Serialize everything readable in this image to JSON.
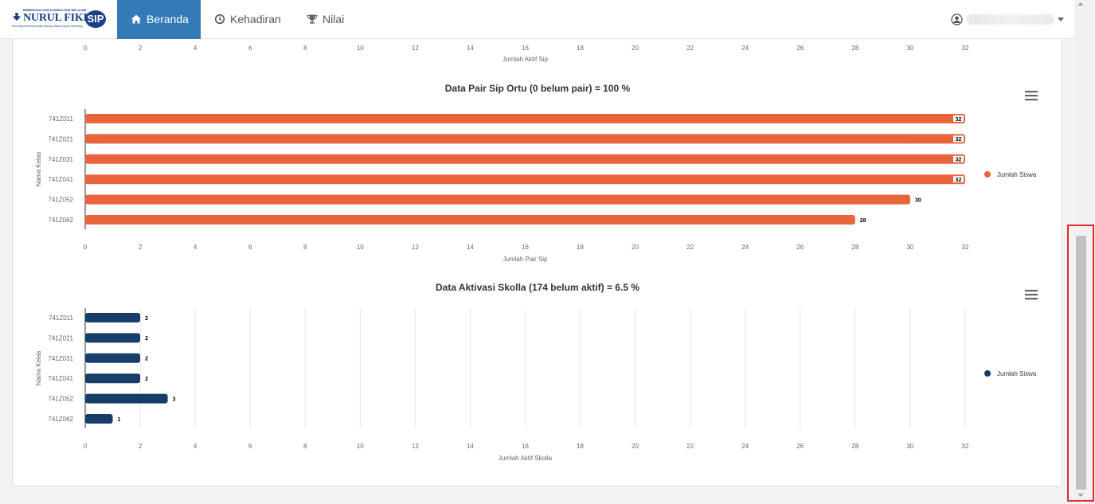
{
  "nav": {
    "logo": {
      "small_text": "BIMBINGAN DAN KONSULTASI BELAJAR",
      "brand": "NURUL FIKRI",
      "badge": "SIP",
      "tagline": "Kita Maju Bersama Wake Menuju Masa Depan Gemilang"
    },
    "items": [
      {
        "label": "Beranda",
        "icon": "home-icon",
        "active": true
      },
      {
        "label": "Kehadiran",
        "icon": "clock-icon",
        "active": false
      },
      {
        "label": "Nilai",
        "icon": "trophy-icon",
        "active": false
      }
    ],
    "user_icon": "user-circle-icon"
  },
  "colors": {
    "orange": "#e8643a",
    "navy": "#163e68",
    "active_nav": "#347ab7"
  },
  "chart_data": [
    {
      "type": "bar",
      "title": "",
      "xlabel": "Jumlah Aktif Sip",
      "xlim": [
        0,
        32
      ],
      "ticks": [
        "0",
        "2",
        "4",
        "6",
        "8",
        "10",
        "12",
        "14",
        "16",
        "18",
        "20",
        "22",
        "24",
        "26",
        "28",
        "30",
        "32"
      ],
      "partial": true
    },
    {
      "type": "bar",
      "orientation": "horizontal",
      "title": "Data Pair Sip Ortu (0 belum pair) = 100 %",
      "xlabel": "Jumlah Pair Sip",
      "ylabel": "Nama Kelas",
      "xlim": [
        0,
        32
      ],
      "ticks": [
        "0",
        "2",
        "4",
        "6",
        "8",
        "10",
        "12",
        "14",
        "16",
        "18",
        "20",
        "22",
        "24",
        "26",
        "28",
        "30",
        "32"
      ],
      "categories": [
        "741Z011",
        "741Z021",
        "741Z031",
        "741Z041",
        "741Z052",
        "741Z062"
      ],
      "series": [
        {
          "name": "Jumlah Siswa",
          "values": [
            32,
            32,
            32,
            32,
            30,
            28
          ],
          "color": "#e8643a"
        }
      ],
      "legend": "right",
      "grid": false
    },
    {
      "type": "bar",
      "orientation": "horizontal",
      "title": "Data Aktivasi Skolla (174 belum aktif) = 6.5 %",
      "xlabel": "Jumlah Aktif Skolla",
      "ylabel": "Nama Kelas",
      "xlim": [
        0,
        32
      ],
      "ticks": [
        "0",
        "2",
        "4",
        "6",
        "8",
        "10",
        "12",
        "14",
        "16",
        "18",
        "20",
        "22",
        "24",
        "26",
        "28",
        "30",
        "32"
      ],
      "categories": [
        "741Z011",
        "741Z021",
        "741Z031",
        "741Z041",
        "741Z052",
        "741Z062"
      ],
      "series": [
        {
          "name": "Jumlah Siswa",
          "values": [
            2,
            2,
            2,
            2,
            3,
            1
          ],
          "color": "#163e68"
        }
      ],
      "legend": "right",
      "grid": true
    }
  ]
}
